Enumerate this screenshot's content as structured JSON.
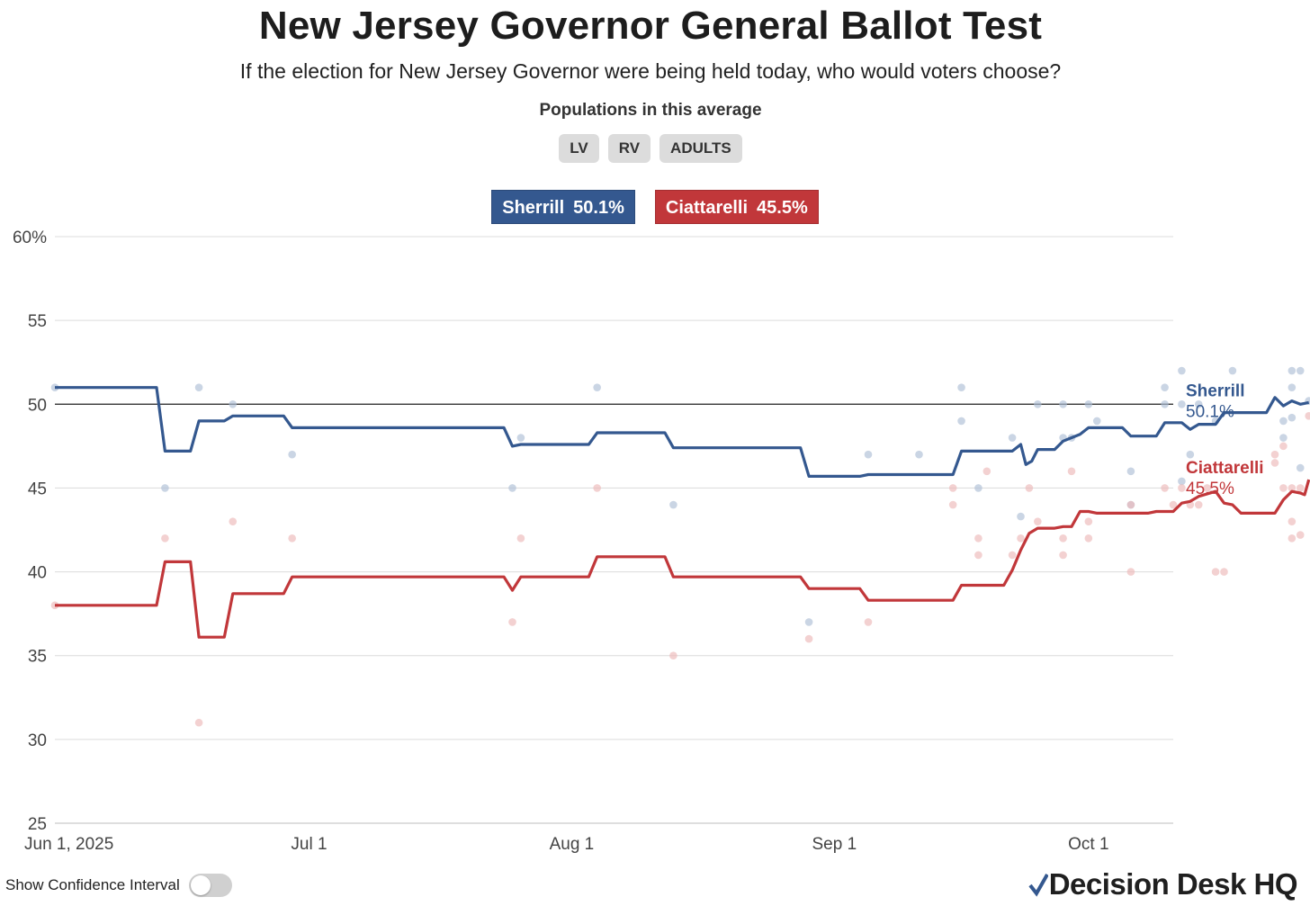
{
  "header": {
    "title": "New Jersey Governor General Ballot Test",
    "subtitle": "If the election for New Jersey Governor were being held today, who would voters choose?",
    "populations_label": "Populations in this average",
    "populations": [
      "LV",
      "RV",
      "ADULTS"
    ]
  },
  "legend": [
    {
      "name": "Sherrill",
      "value": "50.1%",
      "color": "#34588f"
    },
    {
      "name": "Ciattarelli",
      "value": "45.5%",
      "color": "#c1373a"
    }
  ],
  "controls": {
    "confidence_label": "Show Confidence Interval",
    "confidence_on": false
  },
  "brand": {
    "logo_text": "Decision Desk HQ",
    "check_colors": [
      "#34588f",
      "#c1373a"
    ]
  },
  "chart_data": {
    "type": "line",
    "title": "New Jersey Governor General Ballot Test",
    "ylim": [
      25,
      60
    ],
    "yticks": [
      {
        "v": 60,
        "label": "60%"
      },
      {
        "v": 55,
        "label": "55"
      },
      {
        "v": 50,
        "label": "50"
      },
      {
        "v": 45,
        "label": "45"
      },
      {
        "v": 40,
        "label": "40"
      },
      {
        "v": 35,
        "label": "35"
      },
      {
        "v": 30,
        "label": "30"
      },
      {
        "v": 25,
        "label": "25"
      }
    ],
    "xlim": [
      0,
      132
    ],
    "xticks": [
      {
        "day": 0,
        "label": "Jun 1, 2025"
      },
      {
        "day": 30,
        "label": "Jul 1"
      },
      {
        "day": 61,
        "label": "Aug 1"
      },
      {
        "day": 92,
        "label": "Sep 1"
      },
      {
        "day": 122,
        "label": "Oct 1"
      }
    ],
    "reference_line": 50,
    "series": [
      {
        "name": "Sherrill",
        "end_label_name": "Sherrill",
        "end_label_value": "50.1%",
        "color": "#34588f",
        "dot_color": "#aebfd6",
        "line": [
          [
            0,
            51.0
          ],
          [
            12,
            51.0
          ],
          [
            13,
            47.2
          ],
          [
            16,
            47.2
          ],
          [
            17,
            49.0
          ],
          [
            20,
            49.0
          ],
          [
            21,
            49.3
          ],
          [
            27,
            49.3
          ],
          [
            28,
            48.6
          ],
          [
            53,
            48.6
          ],
          [
            54,
            47.5
          ],
          [
            55,
            47.6
          ],
          [
            63,
            47.6
          ],
          [
            64,
            48.3
          ],
          [
            72,
            48.3
          ],
          [
            73,
            47.4
          ],
          [
            88,
            47.4
          ],
          [
            89,
            45.7
          ],
          [
            95,
            45.7
          ],
          [
            96,
            45.8
          ],
          [
            106,
            45.8
          ],
          [
            107,
            47.2
          ],
          [
            113,
            47.2
          ],
          [
            114,
            47.6
          ],
          [
            114.6,
            46.4
          ],
          [
            115.3,
            46.6
          ],
          [
            116,
            47.3
          ],
          [
            118,
            47.3
          ],
          [
            119,
            47.8
          ],
          [
            120,
            48.0
          ],
          [
            121,
            48.2
          ],
          [
            122,
            48.6
          ],
          [
            126,
            48.6
          ],
          [
            127,
            48.1
          ],
          [
            130,
            48.1
          ],
          [
            131,
            48.9
          ],
          [
            133,
            48.9
          ],
          [
            134,
            48.5
          ],
          [
            135,
            48.8
          ],
          [
            137,
            48.8
          ],
          [
            138,
            49.5
          ],
          [
            143,
            49.5
          ],
          [
            144,
            50.4
          ],
          [
            145,
            49.9
          ],
          [
            146,
            50.2
          ],
          [
            147,
            50.0
          ],
          [
            148,
            50.1
          ]
        ],
        "polls": [
          [
            0,
            51
          ],
          [
            13,
            45
          ],
          [
            17,
            51
          ],
          [
            21,
            50
          ],
          [
            28,
            47
          ],
          [
            54,
            45
          ],
          [
            55,
            48
          ],
          [
            64,
            51
          ],
          [
            73,
            44
          ],
          [
            89,
            37
          ],
          [
            96,
            47
          ],
          [
            102,
            47
          ],
          [
            107,
            51
          ],
          [
            107,
            49
          ],
          [
            109,
            45
          ],
          [
            113,
            48
          ],
          [
            114,
            43.3
          ],
          [
            116,
            50
          ],
          [
            119,
            48
          ],
          [
            119,
            50
          ],
          [
            120,
            48
          ],
          [
            122,
            50
          ],
          [
            123,
            49
          ],
          [
            127,
            46
          ],
          [
            127,
            44
          ],
          [
            131,
            51
          ],
          [
            131,
            50
          ],
          [
            133,
            52
          ],
          [
            133,
            50
          ],
          [
            133,
            45.4
          ],
          [
            134,
            47
          ],
          [
            135,
            50
          ],
          [
            137,
            49
          ],
          [
            139,
            52
          ],
          [
            145,
            49
          ],
          [
            145,
            48
          ],
          [
            146,
            52
          ],
          [
            146,
            51
          ],
          [
            146,
            49.2
          ],
          [
            147,
            52
          ],
          [
            147,
            46.2
          ],
          [
            148,
            50.2
          ]
        ]
      },
      {
        "name": "Ciattarelli",
        "end_label_name": "Ciattarelli",
        "end_label_value": "45.5%",
        "color": "#c1373a",
        "dot_color": "#ecb8b8",
        "line": [
          [
            0,
            38.0
          ],
          [
            12,
            38.0
          ],
          [
            13,
            40.6
          ],
          [
            16,
            40.6
          ],
          [
            17,
            36.1
          ],
          [
            20,
            36.1
          ],
          [
            21,
            38.7
          ],
          [
            27,
            38.7
          ],
          [
            28,
            39.7
          ],
          [
            53,
            39.7
          ],
          [
            54,
            38.9
          ],
          [
            55,
            39.7
          ],
          [
            63,
            39.7
          ],
          [
            64,
            40.9
          ],
          [
            72,
            40.9
          ],
          [
            73,
            39.7
          ],
          [
            88,
            39.7
          ],
          [
            89,
            39.0
          ],
          [
            95,
            39.0
          ],
          [
            96,
            38.3
          ],
          [
            106,
            38.3
          ],
          [
            107,
            39.2
          ],
          [
            112,
            39.2
          ],
          [
            113,
            40.1
          ],
          [
            114,
            41.3
          ],
          [
            115,
            42.3
          ],
          [
            116,
            42.6
          ],
          [
            118,
            42.6
          ],
          [
            119,
            42.7
          ],
          [
            120,
            42.7
          ],
          [
            121,
            43.6
          ],
          [
            122,
            43.6
          ],
          [
            123,
            43.5
          ],
          [
            129,
            43.5
          ],
          [
            130,
            43.6
          ],
          [
            132,
            43.6
          ],
          [
            133,
            44.1
          ],
          [
            134,
            44.2
          ],
          [
            135,
            44.5
          ],
          [
            137,
            44.8
          ],
          [
            138,
            44.1
          ],
          [
            139,
            44.0
          ],
          [
            140,
            43.5
          ],
          [
            144,
            43.5
          ],
          [
            145,
            44.3
          ],
          [
            146,
            44.8
          ],
          [
            147,
            44.7
          ],
          [
            147.5,
            44.6
          ],
          [
            148,
            45.5
          ]
        ],
        "polls": [
          [
            0,
            38
          ],
          [
            13,
            42
          ],
          [
            17,
            31
          ],
          [
            21,
            43
          ],
          [
            28,
            42
          ],
          [
            54,
            37
          ],
          [
            55,
            42
          ],
          [
            64,
            45
          ],
          [
            73,
            35
          ],
          [
            89,
            36
          ],
          [
            96,
            37
          ],
          [
            106,
            45
          ],
          [
            106,
            44
          ],
          [
            109,
            42
          ],
          [
            109,
            41
          ],
          [
            110,
            46
          ],
          [
            113,
            41
          ],
          [
            114,
            42
          ],
          [
            115,
            45
          ],
          [
            116,
            43
          ],
          [
            119,
            42
          ],
          [
            119,
            41
          ],
          [
            120,
            46
          ],
          [
            122,
            42
          ],
          [
            122,
            43
          ],
          [
            127,
            44
          ],
          [
            127,
            40
          ],
          [
            131,
            45
          ],
          [
            132,
            44
          ],
          [
            133,
            45
          ],
          [
            134,
            44
          ],
          [
            135,
            44
          ],
          [
            136,
            45
          ],
          [
            137,
            40
          ],
          [
            138,
            40
          ],
          [
            144,
            46.5
          ],
          [
            144,
            47
          ],
          [
            145,
            45
          ],
          [
            145,
            47.5
          ],
          [
            146,
            45
          ],
          [
            146,
            43
          ],
          [
            146,
            42
          ],
          [
            147,
            45
          ],
          [
            147,
            42.2
          ],
          [
            148,
            49.3
          ]
        ]
      }
    ]
  }
}
